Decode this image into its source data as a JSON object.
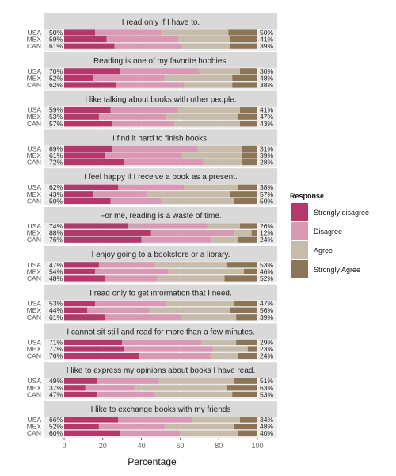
{
  "chart_data": {
    "type": "bar",
    "orientation": "horizontal",
    "stacked": "diverging-percent",
    "xlabel": "Percentage",
    "xlim": [
      0,
      100
    ],
    "xticks": [
      "0",
      "20",
      "40",
      "60",
      "80",
      "100"
    ],
    "grid": true,
    "legend_title": "Response",
    "legend_position": "right",
    "categories_order": [
      "USA",
      "MEX",
      "CAN"
    ],
    "series": [
      {
        "name": "Strongly disagree",
        "color": "#b5386a"
      },
      {
        "name": "Disagree",
        "color": "#d998b3"
      },
      {
        "name": "Agree",
        "color": "#c7bcab"
      },
      {
        "name": "Strongly Agree",
        "color": "#8c7556"
      }
    ],
    "panels": [
      {
        "title": "I read only if I have to.",
        "rows": [
          {
            "country": "USA",
            "left_label": "50%",
            "right_label": "50%",
            "values": [
              16,
              34,
              35,
              15
            ]
          },
          {
            "country": "MEX",
            "left_label": "59%",
            "right_label": "41%",
            "values": [
              22,
              37,
              27,
              14
            ]
          },
          {
            "country": "CAN",
            "left_label": "61%",
            "right_label": "39%",
            "values": [
              26,
              35,
              25,
              14
            ]
          }
        ]
      },
      {
        "title": "Reading is one of my favorite hobbies.",
        "rows": [
          {
            "country": "USA",
            "left_label": "70%",
            "right_label": "30%",
            "values": [
              29,
              41,
              21,
              9
            ]
          },
          {
            "country": "MEX",
            "left_label": "52%",
            "right_label": "48%",
            "values": [
              15,
              37,
              35,
              13
            ]
          },
          {
            "country": "CAN",
            "left_label": "62%",
            "right_label": "38%",
            "values": [
              27,
              35,
              25,
              13
            ]
          }
        ]
      },
      {
        "title": "I like talking about books with other people.",
        "rows": [
          {
            "country": "USA",
            "left_label": "59%",
            "right_label": "41%",
            "values": [
              24,
              35,
              32,
              9
            ]
          },
          {
            "country": "MEX",
            "left_label": "53%",
            "right_label": "47%",
            "values": [
              18,
              35,
              37,
              10
            ]
          },
          {
            "country": "CAN",
            "left_label": "57%",
            "right_label": "43%",
            "values": [
              25,
              32,
              34,
              9
            ]
          }
        ]
      },
      {
        "title": "I find it hard to finish books.",
        "rows": [
          {
            "country": "USA",
            "left_label": "69%",
            "right_label": "31%",
            "values": [
              25,
              44,
              23,
              8
            ]
          },
          {
            "country": "MEX",
            "left_label": "61%",
            "right_label": "39%",
            "values": [
              21,
              40,
              31,
              8
            ]
          },
          {
            "country": "CAN",
            "left_label": "72%",
            "right_label": "28%",
            "values": [
              31,
              41,
              20,
              8
            ]
          }
        ]
      },
      {
        "title": "I feel happy if I receive a book as a present.",
        "rows": [
          {
            "country": "USA",
            "left_label": "62%",
            "right_label": "38%",
            "values": [
              28,
              34,
              28,
              10
            ]
          },
          {
            "country": "MEX",
            "left_label": "43%",
            "right_label": "57%",
            "values": [
              15,
              28,
              43,
              14
            ]
          },
          {
            "country": "CAN",
            "left_label": "50%",
            "right_label": "50%",
            "values": [
              24,
              26,
              38,
              12
            ]
          }
        ]
      },
      {
        "title": "For me, reading is a waste of time.",
        "rows": [
          {
            "country": "USA",
            "left_label": "74%",
            "right_label": "26%",
            "values": [
              33,
              41,
              17,
              9
            ]
          },
          {
            "country": "MEX",
            "left_label": "88%",
            "right_label": "12%",
            "values": [
              45,
              43,
              9,
              3
            ]
          },
          {
            "country": "CAN",
            "left_label": "76%",
            "right_label": "24%",
            "values": [
              40,
              36,
              14,
              10
            ]
          }
        ]
      },
      {
        "title": "I enjoy going to a bookstore or a library.",
        "rows": [
          {
            "country": "USA",
            "left_label": "47%",
            "right_label": "53%",
            "values": [
              18,
              29,
              37,
              16
            ]
          },
          {
            "country": "MEX",
            "left_label": "54%",
            "right_label": "46%",
            "values": [
              16,
              38,
              39,
              7
            ]
          },
          {
            "country": "CAN",
            "left_label": "48%",
            "right_label": "52%",
            "values": [
              21,
              27,
              35,
              17
            ]
          }
        ]
      },
      {
        "title": "I read only to get information that I need.",
        "rows": [
          {
            "country": "USA",
            "left_label": "53%",
            "right_label": "47%",
            "values": [
              16,
              37,
              35,
              12
            ]
          },
          {
            "country": "MEX",
            "left_label": "44%",
            "right_label": "56%",
            "values": [
              12,
              32,
              42,
              14
            ]
          },
          {
            "country": "CAN",
            "left_label": "61%",
            "right_label": "39%",
            "values": [
              21,
              40,
              28,
              11
            ]
          }
        ]
      },
      {
        "title": "I cannot sit still and read for more than a few minutes.",
        "rows": [
          {
            "country": "USA",
            "left_label": "71%",
            "right_label": "29%",
            "values": [
              30,
              41,
              18,
              11
            ]
          },
          {
            "country": "MEX",
            "left_label": "77%",
            "right_label": "23%",
            "values": [
              31,
              46,
              18,
              5
            ]
          },
          {
            "country": "CAN",
            "left_label": "76%",
            "right_label": "24%",
            "values": [
              39,
              37,
              14,
              10
            ]
          }
        ]
      },
      {
        "title": "I like to express my opinions about books I have read.",
        "rows": [
          {
            "country": "USA",
            "left_label": "49%",
            "right_label": "51%",
            "values": [
              17,
              32,
              39,
              12
            ]
          },
          {
            "country": "MEX",
            "left_label": "37%",
            "right_label": "63%",
            "values": [
              11,
              26,
              47,
              16
            ]
          },
          {
            "country": "CAN",
            "left_label": "47%",
            "right_label": "53%",
            "values": [
              17,
              30,
              40,
              13
            ]
          }
        ]
      },
      {
        "title": "I like to exchange books with my friends",
        "rows": [
          {
            "country": "USA",
            "left_label": "66%",
            "right_label": "34%",
            "values": [
              28,
              38,
              25,
              9
            ]
          },
          {
            "country": "MEX",
            "left_label": "52%",
            "right_label": "48%",
            "values": [
              18,
              34,
              36,
              12
            ]
          },
          {
            "country": "CAN",
            "left_label": "60%",
            "right_label": "40%",
            "values": [
              29,
              31,
              30,
              10
            ]
          }
        ]
      }
    ]
  }
}
